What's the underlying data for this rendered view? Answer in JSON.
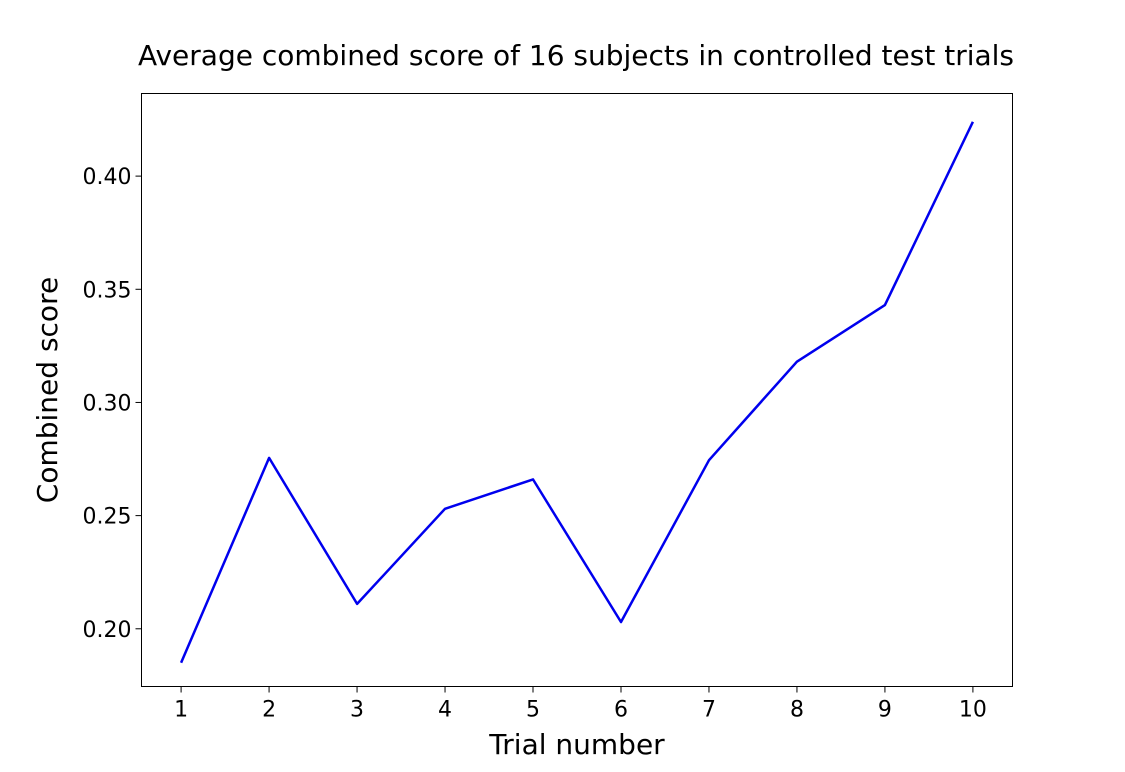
{
  "chart_data": {
    "type": "line",
    "title": "Average combined score of 16 subjects in controlled test trials",
    "xlabel": "Trial number",
    "ylabel": "Combined score",
    "xlim": [
      0.55,
      10.45
    ],
    "ylim": [
      0.1745,
      0.4365
    ],
    "xticks": [
      1,
      2,
      3,
      4,
      5,
      6,
      7,
      8,
      9,
      10
    ],
    "yticks": [
      0.2,
      0.25,
      0.3,
      0.35,
      0.4
    ],
    "ytick_labels": [
      "0.20",
      "0.25",
      "0.30",
      "0.35",
      "0.40"
    ],
    "grid": false,
    "series": [
      {
        "color": "#0000ee",
        "x": [
          1,
          2,
          3,
          4,
          5,
          6,
          7,
          8,
          9,
          10
        ],
        "y": [
          0.185,
          0.2755,
          0.211,
          0.253,
          0.266,
          0.203,
          0.2745,
          0.318,
          0.343,
          0.424
        ]
      }
    ]
  }
}
